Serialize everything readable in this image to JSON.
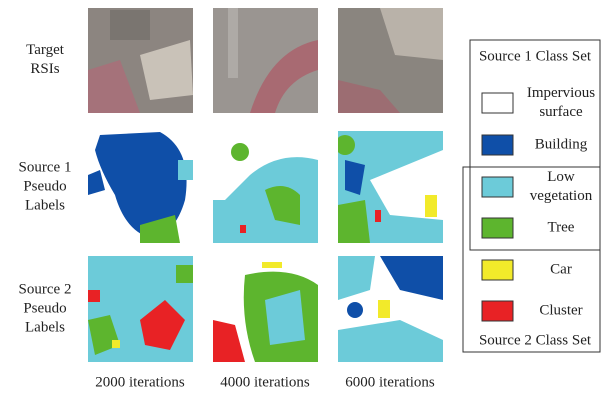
{
  "row_labels": [
    [
      "Target",
      "RSIs"
    ],
    [
      "Source 1",
      "Pseudo",
      "Labels"
    ],
    [
      "Source 2",
      "Pseudo",
      "Labels"
    ]
  ],
  "column_labels": [
    "2000 iterations",
    "4000 iterations",
    "6000 iterations"
  ],
  "legend": {
    "source1_title": "Source 1 Class Set",
    "source2_title": "Source 2 Class Set",
    "classes": [
      {
        "name": [
          "Impervious",
          "surface"
        ],
        "color": "#ffffff"
      },
      {
        "name": [
          "Building"
        ],
        "color": "#0f4fa8"
      },
      {
        "name": [
          "Low",
          "vegetation"
        ],
        "color": "#6ccbd9"
      },
      {
        "name": [
          "Tree"
        ],
        "color": "#5db52e"
      },
      {
        "name": [
          "Car"
        ],
        "color": "#f2ea2a"
      },
      {
        "name": [
          "Cluster"
        ],
        "color": "#e82225"
      }
    ]
  }
}
